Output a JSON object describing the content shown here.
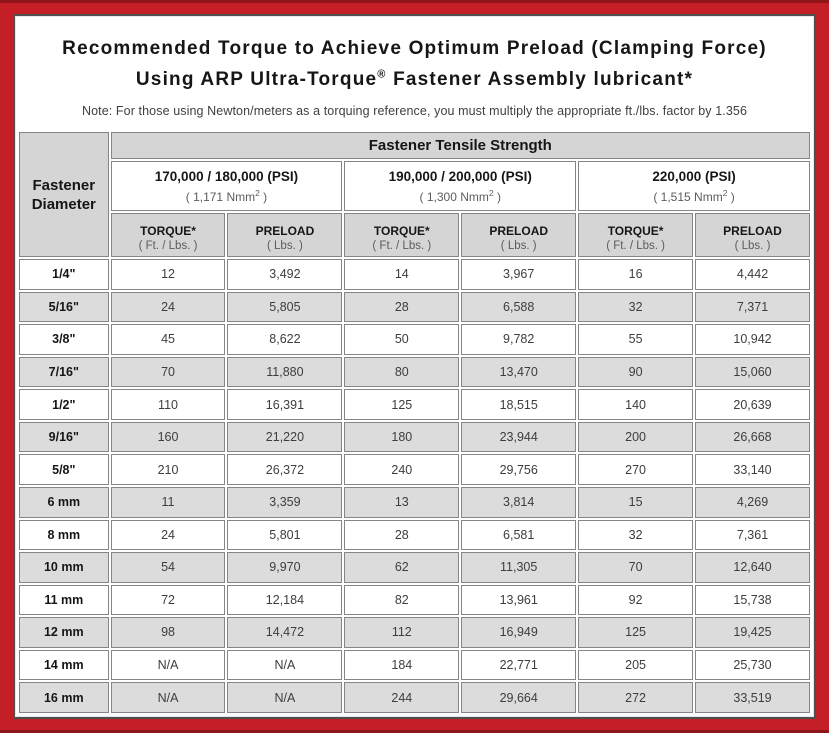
{
  "title": {
    "line1": "Recommended Torque to Achieve Optimum Preload (Clamping Force)",
    "line2": {
      "pre": "Using ARP Ultra-Torque",
      "sup": "®",
      "post": " Fastener Assembly lubricant*"
    }
  },
  "note": "Note: For those using Newton/meters as a torquing reference, you must multiply the appropriate ft./lbs. factor by 1.356",
  "table": {
    "tensile_header": "Fastener Tensile Strength",
    "corner_header": {
      "line1": "Fastener",
      "line2": "Diameter"
    },
    "strength_groups": [
      {
        "psi": "170,000 / 180,000 (PSI)",
        "nmm_pre": "( 1,171 Nmm",
        "nmm_sup": "2",
        "nmm_post": " )"
      },
      {
        "psi": "190,000 / 200,000 (PSI)",
        "nmm_pre": "( 1,300 Nmm",
        "nmm_sup": "2",
        "nmm_post": " )"
      },
      {
        "psi": "220,000 (PSI)",
        "nmm_pre": "( 1,515 Nmm",
        "nmm_sup": "2",
        "nmm_post": " )"
      }
    ],
    "sub_headers": {
      "torque_label": "TORQUE*",
      "torque_unit": "( Ft. / Lbs. )",
      "preload_label": "PRELOAD",
      "preload_unit": "( Lbs. )"
    },
    "rows": [
      {
        "diameter": "1/4\"",
        "values": [
          "12",
          "3,492",
          "14",
          "3,967",
          "16",
          "4,442"
        ]
      },
      {
        "diameter": "5/16\"",
        "values": [
          "24",
          "5,805",
          "28",
          "6,588",
          "32",
          "7,371"
        ]
      },
      {
        "diameter": "3/8\"",
        "values": [
          "45",
          "8,622",
          "50",
          "9,782",
          "55",
          "10,942"
        ]
      },
      {
        "diameter": "7/16\"",
        "values": [
          "70",
          "11,880",
          "80",
          "13,470",
          "90",
          "15,060"
        ]
      },
      {
        "diameter": "1/2\"",
        "values": [
          "110",
          "16,391",
          "125",
          "18,515",
          "140",
          "20,639"
        ]
      },
      {
        "diameter": "9/16\"",
        "values": [
          "160",
          "21,220",
          "180",
          "23,944",
          "200",
          "26,668"
        ]
      },
      {
        "diameter": "5/8\"",
        "values": [
          "210",
          "26,372",
          "240",
          "29,756",
          "270",
          "33,140"
        ]
      },
      {
        "diameter": "6 mm",
        "values": [
          "11",
          "3,359",
          "13",
          "3,814",
          "15",
          "4,269"
        ]
      },
      {
        "diameter": "8 mm",
        "values": [
          "24",
          "5,801",
          "28",
          "6,581",
          "32",
          "7,361"
        ]
      },
      {
        "diameter": "10 mm",
        "values": [
          "54",
          "9,970",
          "62",
          "11,305",
          "70",
          "12,640"
        ]
      },
      {
        "diameter": "11 mm",
        "values": [
          "72",
          "12,184",
          "82",
          "13,961",
          "92",
          "15,738"
        ]
      },
      {
        "diameter": "12 mm",
        "values": [
          "98",
          "14,472",
          "112",
          "16,949",
          "125",
          "19,425"
        ]
      },
      {
        "diameter": "14 mm",
        "values": [
          "N/A",
          "N/A",
          "184",
          "22,771",
          "205",
          "25,730"
        ]
      },
      {
        "diameter": "16 mm",
        "values": [
          "N/A",
          "N/A",
          "244",
          "29,664",
          "272",
          "33,519"
        ]
      }
    ]
  },
  "colors": {
    "frame_red": "#c41f27",
    "frame_red_dark": "#8e161b",
    "panel_border": "#4f4f4f",
    "cell_border": "#858585",
    "header_gray": "#d5d5d5",
    "row_alt_gray": "#dcdcdc"
  }
}
